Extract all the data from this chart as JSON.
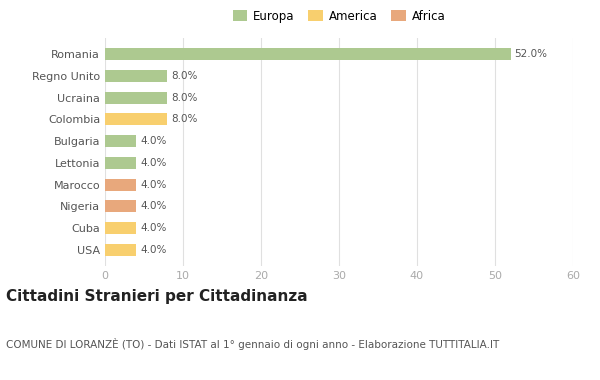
{
  "categories": [
    "USA",
    "Cuba",
    "Nigeria",
    "Marocco",
    "Lettonia",
    "Bulgaria",
    "Colombia",
    "Ucraina",
    "Regno Unito",
    "Romania"
  ],
  "values": [
    4.0,
    4.0,
    4.0,
    4.0,
    4.0,
    4.0,
    8.0,
    8.0,
    8.0,
    52.0
  ],
  "colors": [
    "#f8cf6e",
    "#f8cf6e",
    "#e8a87c",
    "#e8a87c",
    "#adc990",
    "#adc990",
    "#f8cf6e",
    "#adc990",
    "#adc990",
    "#adc990"
  ],
  "legend_labels": [
    "Europa",
    "America",
    "Africa"
  ],
  "legend_colors": [
    "#adc990",
    "#f8cf6e",
    "#e8a87c"
  ],
  "title": "Cittadini Stranieri per Cittadinanza",
  "subtitle": "COMUNE DI LORANZÈ (TO) - Dati ISTAT al 1° gennaio di ogni anno - Elaborazione TUTTITALIA.IT",
  "xlim": [
    0,
    60
  ],
  "xticks": [
    0,
    10,
    20,
    30,
    40,
    50,
    60
  ],
  "background_color": "#ffffff",
  "title_fontsize": 11,
  "subtitle_fontsize": 7.5
}
